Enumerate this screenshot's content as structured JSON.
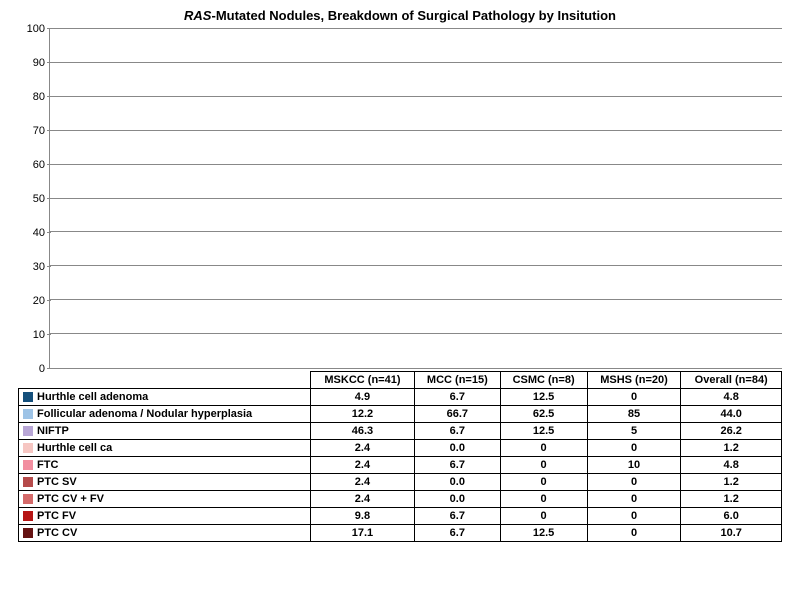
{
  "chart": {
    "title_prefix_italic": "RAS",
    "title_rest": "-Mutated Nodules, Breakdown of Surgical Pathology by Insitution",
    "type": "stacked-bar",
    "ylim": [
      0,
      100
    ],
    "ytick_step": 10,
    "background_color": "#ffffff",
    "grid_color": "#888888",
    "bar_width_pct": 56,
    "categories": [
      {
        "label": "MSKCC (n=41)",
        "key": "mskcc"
      },
      {
        "label": "MCC (n=15)",
        "key": "mcc"
      },
      {
        "label": "CSMC (n=8)",
        "key": "csmc"
      },
      {
        "label": "MSHS (n=20)",
        "key": "mshs"
      },
      {
        "label": "Overall (n=84)",
        "key": "overall"
      }
    ],
    "series": [
      {
        "key": "hurthle_ad",
        "label": "Hurthle cell adenoma",
        "color": "#144f7b",
        "values": {
          "mskcc": "4.9",
          "mcc": "6.7",
          "csmc": "12.5",
          "mshs": "0",
          "overall": "4.8"
        }
      },
      {
        "key": "foll_ad",
        "label": "Follicular adenoma / Nodular hyperplasia",
        "color": "#9dc3e6",
        "values": {
          "mskcc": "12.2",
          "mcc": "66.7",
          "csmc": "62.5",
          "mshs": "85",
          "overall": "44.0"
        }
      },
      {
        "key": "niftp",
        "label": "NIFTP",
        "color": "#b8a6d6",
        "values": {
          "mskcc": "46.3",
          "mcc": "6.7",
          "csmc": "12.5",
          "mshs": "5",
          "overall": "26.2"
        }
      },
      {
        "key": "hurthle_ca",
        "label": "Hurthle cell ca",
        "color": "#f6c6c2",
        "values": {
          "mskcc": "2.4",
          "mcc": "0.0",
          "csmc": "0",
          "mshs": "0",
          "overall": "1.2"
        }
      },
      {
        "key": "ftc",
        "label": "FTC",
        "color": "#f28ea0",
        "values": {
          "mskcc": "2.4",
          "mcc": "6.7",
          "csmc": "0",
          "mshs": "10",
          "overall": "4.8"
        }
      },
      {
        "key": "ptc_sv",
        "label": "PTC SV",
        "color": "#b54a4a",
        "values": {
          "mskcc": "2.4",
          "mcc": "0.0",
          "csmc": "0",
          "mshs": "0",
          "overall": "1.2"
        }
      },
      {
        "key": "ptc_cv_fv",
        "label": "PTC CV + FV",
        "color": "#d46a6a",
        "values": {
          "mskcc": "2.4",
          "mcc": "0.0",
          "csmc": "0",
          "mshs": "0",
          "overall": "1.2"
        }
      },
      {
        "key": "ptc_fv",
        "label": "PTC FV",
        "color": "#b61515",
        "values": {
          "mskcc": "9.8",
          "mcc": "6.7",
          "csmc": "0",
          "mshs": "0",
          "overall": "6.0"
        }
      },
      {
        "key": "ptc_cv",
        "label": "PTC CV",
        "color": "#651212",
        "values": {
          "mskcc": "17.1",
          "mcc": "6.7",
          "csmc": "12.5",
          "mshs": "0",
          "overall": "10.7"
        }
      }
    ],
    "title_fontsize": 13,
    "label_fontsize": 11
  }
}
